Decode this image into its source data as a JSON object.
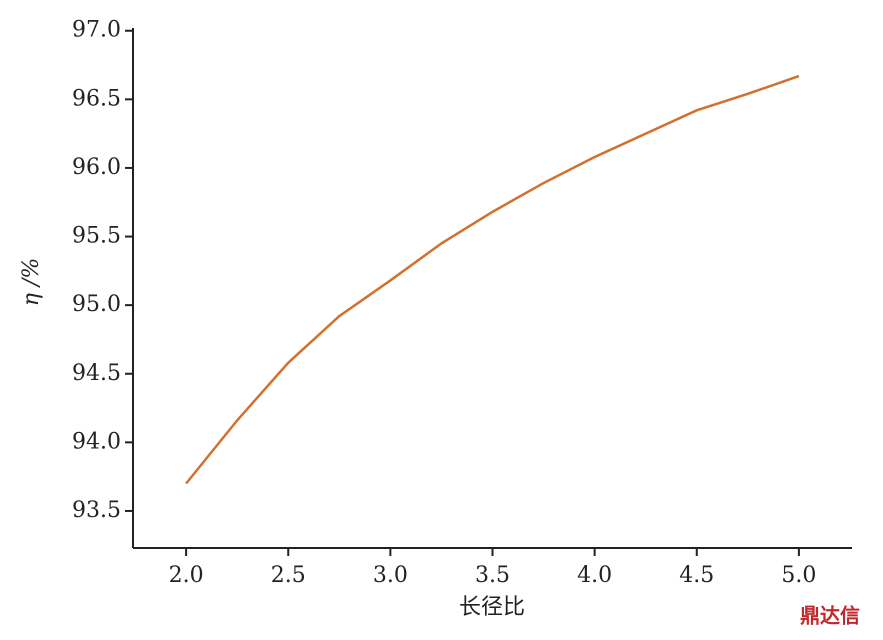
{
  "chart_data": {
    "type": "line",
    "x_label": "长径比",
    "y_label": "η /%",
    "x": [
      2.0,
      2.25,
      2.5,
      2.75,
      3.0,
      3.25,
      3.5,
      3.75,
      4.0,
      4.25,
      4.5,
      4.75,
      5.0
    ],
    "series": [
      {
        "color": "#d2702d",
        "values": [
          93.7,
          94.16,
          94.58,
          94.92,
          95.18,
          95.45,
          95.68,
          95.89,
          96.08,
          96.25,
          96.42,
          96.54,
          96.67
        ]
      }
    ],
    "xlim": [
      1.74,
      5.26
    ],
    "ylim": [
      93.23,
      97.02
    ],
    "xticks": [
      {
        "value": 2,
        "label": "2.0"
      },
      {
        "value": 2.5,
        "label": "2.5"
      },
      {
        "value": 3,
        "label": "3.0"
      },
      {
        "value": 3.5,
        "label": "3.5"
      },
      {
        "value": 4,
        "label": "4.0"
      },
      {
        "value": 4.5,
        "label": "4.5"
      },
      {
        "value": 5,
        "label": "5.0"
      }
    ],
    "yticks": [
      {
        "value": 93.5,
        "label": "93.5"
      },
      {
        "value": 94,
        "label": "94.0"
      },
      {
        "value": 94.5,
        "label": "94.5"
      },
      {
        "value": 95,
        "label": "95.0"
      },
      {
        "value": 95.5,
        "label": "95.5"
      },
      {
        "value": 96,
        "label": "96.0"
      },
      {
        "value": 96.5,
        "label": "96.5"
      },
      {
        "value": 97,
        "label": "97.0"
      }
    ],
    "watermark": "鼎达信"
  }
}
